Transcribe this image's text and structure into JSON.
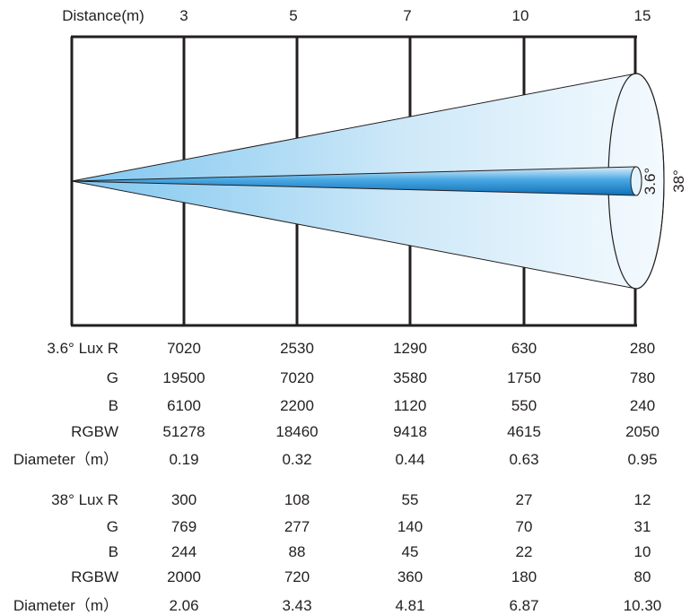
{
  "header": {
    "label": "Distance(m)",
    "distances": [
      "3",
      "5",
      "7",
      "10",
      "15"
    ]
  },
  "beam": {
    "narrow_angle": "3.6°",
    "wide_angle": "38°"
  },
  "tables": [
    {
      "rows": [
        {
          "label": "3.6° Lux R",
          "values": [
            "7020",
            "2530",
            "1290",
            "630",
            "280"
          ]
        },
        {
          "label": "G",
          "values": [
            "19500",
            "7020",
            "3580",
            "1750",
            "780"
          ]
        },
        {
          "label": "B",
          "values": [
            "6100",
            "2200",
            "1120",
            "550",
            "240"
          ]
        },
        {
          "label": "RGBW",
          "values": [
            "51278",
            "18460",
            "9418",
            "4615",
            "2050"
          ]
        },
        {
          "label": "Diameter（m）",
          "values": [
            "0.19",
            "0.32",
            "0.44",
            "0.63",
            "0.95"
          ]
        }
      ]
    },
    {
      "rows": [
        {
          "label": "38° Lux R",
          "values": [
            "300",
            "108",
            "55",
            "27",
            "12"
          ]
        },
        {
          "label": "G",
          "values": [
            "769",
            "277",
            "140",
            "70",
            "31"
          ]
        },
        {
          "label": "B",
          "values": [
            "244",
            "88",
            "45",
            "22",
            "10"
          ]
        },
        {
          "label": "RGBW",
          "values": [
            "2000",
            "720",
            "360",
            "180",
            "80"
          ]
        },
        {
          "label": "Diameter（m）",
          "values": [
            "2.06",
            "3.43",
            "4.81",
            "6.87",
            "10.30"
          ]
        }
      ]
    }
  ],
  "colors": {
    "line": "#231f20",
    "beam_light": "#e8f4fc",
    "beam_mid": "#9fd3f3",
    "beam_dark": "#1b8fd6"
  }
}
